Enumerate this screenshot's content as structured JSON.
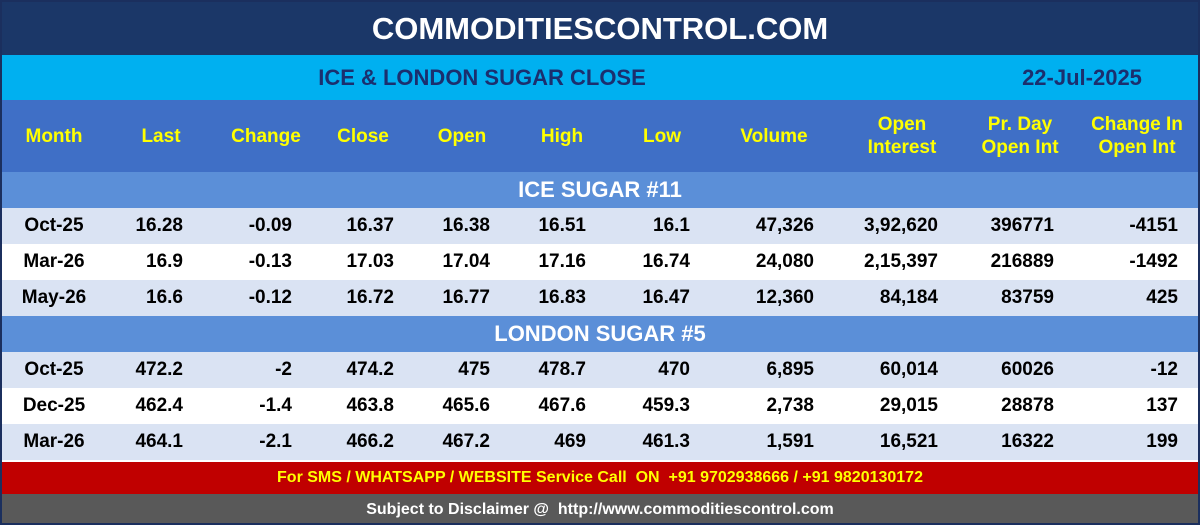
{
  "header": {
    "site": "COMMODITIESCONTROL.COM"
  },
  "subheader": {
    "title": "ICE & LONDON SUGAR CLOSE",
    "date": "22-Jul-2025"
  },
  "table": {
    "columns": [
      "Month",
      "Last",
      "Change",
      "Close",
      "Open",
      "High",
      "Low",
      "Volume",
      "Open Interest",
      "Pr. Day Open Int",
      "Change In Open Int"
    ],
    "sections": [
      {
        "title": "ICE SUGAR #11",
        "rows": [
          [
            "Oct-25",
            "16.28",
            "-0.09",
            "16.37",
            "16.38",
            "16.51",
            "16.1",
            "47,326",
            "3,92,620",
            "396771",
            "-4151"
          ],
          [
            "Mar-26",
            "16.9",
            "-0.13",
            "17.03",
            "17.04",
            "17.16",
            "16.74",
            "24,080",
            "2,15,397",
            "216889",
            "-1492"
          ],
          [
            "May-26",
            "16.6",
            "-0.12",
            "16.72",
            "16.77",
            "16.83",
            "16.47",
            "12,360",
            "84,184",
            "83759",
            "425"
          ]
        ]
      },
      {
        "title": "LONDON SUGAR #5",
        "rows": [
          [
            "Oct-25",
            "472.2",
            "-2",
            "474.2",
            "475",
            "478.7",
            "470",
            "6,895",
            "60,014",
            "60026",
            "-12"
          ],
          [
            "Dec-25",
            "462.4",
            "-1.4",
            "463.8",
            "465.6",
            "467.6",
            "459.3",
            "2,738",
            "29,015",
            "28878",
            "137"
          ],
          [
            "Mar-26",
            "464.1",
            "-2.1",
            "466.2",
            "467.2",
            "469",
            "461.3",
            "1,591",
            "16,521",
            "16322",
            "199"
          ]
        ]
      }
    ]
  },
  "footer": {
    "contact": "For SMS / WHATSAPP / WEBSITE Service Call  ON  +91 9702938666 / +91 9820130172",
    "disclaimer": "Subject to Disclaimer @  http://www.commoditiescontrol.com"
  }
}
